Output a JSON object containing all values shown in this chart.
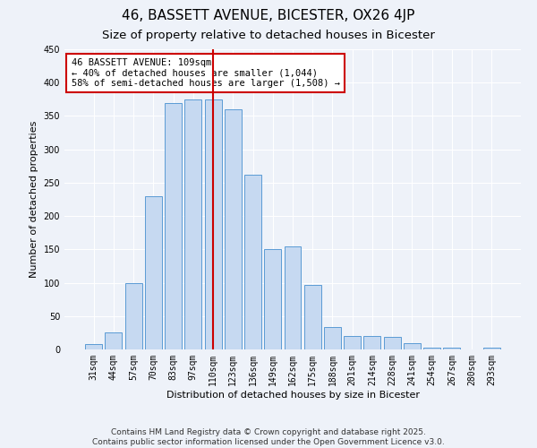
{
  "title": "46, BASSETT AVENUE, BICESTER, OX26 4JP",
  "subtitle": "Size of property relative to detached houses in Bicester",
  "xlabel": "Distribution of detached houses by size in Bicester",
  "ylabel": "Number of detached properties",
  "bar_labels": [
    "31sqm",
    "44sqm",
    "57sqm",
    "70sqm",
    "83sqm",
    "97sqm",
    "110sqm",
    "123sqm",
    "136sqm",
    "149sqm",
    "162sqm",
    "175sqm",
    "188sqm",
    "201sqm",
    "214sqm",
    "228sqm",
    "241sqm",
    "254sqm",
    "267sqm",
    "280sqm",
    "293sqm"
  ],
  "bar_heights": [
    8,
    25,
    100,
    230,
    370,
    375,
    375,
    360,
    262,
    150,
    155,
    97,
    33,
    20,
    20,
    19,
    10,
    3,
    3,
    0,
    3
  ],
  "bar_color": "#c6d9f1",
  "bar_edge_color": "#5b9bd5",
  "vline_x": 6,
  "vline_color": "#cc0000",
  "annotation_text": "46 BASSETT AVENUE: 109sqm\n← 40% of detached houses are smaller (1,044)\n58% of semi-detached houses are larger (1,508) →",
  "annotation_box_color": "#ffffff",
  "annotation_border_color": "#cc0000",
  "ylim": [
    0,
    450
  ],
  "yticks": [
    0,
    50,
    100,
    150,
    200,
    250,
    300,
    350,
    400,
    450
  ],
  "footnote1": "Contains HM Land Registry data © Crown copyright and database right 2025.",
  "footnote2": "Contains public sector information licensed under the Open Government Licence v3.0.",
  "bg_color": "#eef2f9",
  "grid_color": "#ffffff",
  "title_fontsize": 11,
  "subtitle_fontsize": 9.5,
  "axis_label_fontsize": 8,
  "tick_fontsize": 7,
  "annotation_fontsize": 7.5,
  "footnote_fontsize": 6.5
}
